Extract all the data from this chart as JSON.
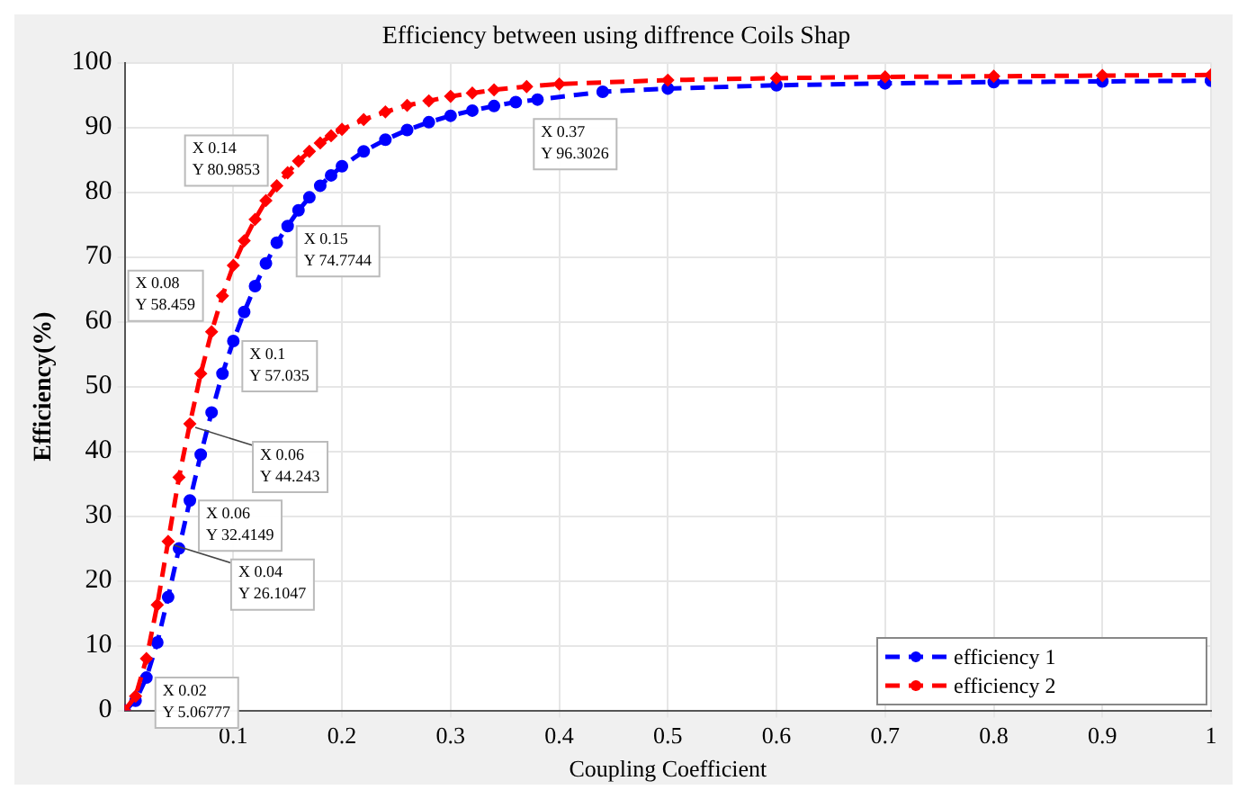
{
  "chart_data": {
    "type": "line",
    "title": "Efficiency between using diffrence Coils Shap",
    "xlabel": "Coupling Coefficient",
    "ylabel": "Efficiency(%)",
    "xlim": [
      0,
      1
    ],
    "xticks": [
      0.1,
      0.2,
      0.3,
      0.4,
      0.5,
      0.6,
      0.7,
      0.8,
      0.9,
      1
    ],
    "ylim": [
      0,
      100
    ],
    "yticks": [
      0,
      10,
      20,
      30,
      40,
      50,
      60,
      70,
      80,
      90,
      100
    ],
    "grid": true,
    "legend": "bottom right",
    "line_style": "dashed",
    "series": [
      {
        "name": "efficiency 1",
        "color": "#0000ff",
        "marker": "circle",
        "x": [
          0,
          0.01,
          0.02,
          0.03,
          0.04,
          0.05,
          0.06,
          0.07,
          0.08,
          0.09,
          0.1,
          0.11,
          0.12,
          0.13,
          0.14,
          0.15,
          0.16,
          0.17,
          0.18,
          0.19,
          0.2,
          0.22,
          0.24,
          0.26,
          0.28,
          0.3,
          0.32,
          0.34,
          0.36,
          0.38,
          0.44,
          0.5,
          0.6,
          0.7,
          0.8,
          0.9,
          1
        ],
        "values": [
          0,
          1.5,
          5.06777,
          10.5,
          17.5,
          25,
          32.4149,
          39.5,
          46,
          52,
          57.035,
          61.5,
          65.5,
          69,
          72.2,
          74.7744,
          77.2,
          79.2,
          81,
          82.6,
          84,
          86.3,
          88.1,
          89.6,
          90.8,
          91.8,
          92.6,
          93.3,
          93.9,
          94.3,
          95.5,
          96,
          96.5,
          96.8,
          97,
          97.1,
          97.2
        ]
      },
      {
        "name": "efficiency 2",
        "color": "#ff0000",
        "marker": "diamond",
        "x": [
          0,
          0.01,
          0.02,
          0.03,
          0.04,
          0.05,
          0.06,
          0.07,
          0.08,
          0.09,
          0.1,
          0.11,
          0.12,
          0.13,
          0.14,
          0.15,
          0.16,
          0.17,
          0.18,
          0.19,
          0.2,
          0.22,
          0.24,
          0.26,
          0.28,
          0.3,
          0.32,
          0.34,
          0.37,
          0.4,
          0.5,
          0.6,
          0.7,
          0.8,
          0.9,
          1
        ],
        "values": [
          0,
          2.2,
          8,
          16.3,
          26.1047,
          36,
          44.243,
          52,
          58.459,
          64,
          68.7,
          72.5,
          75.8,
          78.7,
          80.9853,
          83,
          84.8,
          86.3,
          87.6,
          88.7,
          89.7,
          91.2,
          92.4,
          93.4,
          94.1,
          94.8,
          95.3,
          95.8,
          96.3026,
          96.7,
          97.3,
          97.6,
          97.8,
          97.9,
          98,
          98.1
        ]
      }
    ],
    "annotations": [
      {
        "text": "X 0.02\nY 5.06777",
        "x": 0.02,
        "y": 5.06777
      },
      {
        "text": "X 0.06\nY 32.4149",
        "x": 0.06,
        "y": 32.4149
      },
      {
        "text": "X 0.1\nY 57.035",
        "x": 0.1,
        "y": 57.035
      },
      {
        "text": "X 0.15\nY 74.7744",
        "x": 0.15,
        "y": 74.7744
      },
      {
        "text": "X 0.04\nY 26.1047",
        "x": 0.04,
        "y": 26.1047
      },
      {
        "text": "X 0.06\nY 44.243",
        "x": 0.06,
        "y": 44.243
      },
      {
        "text": "X 0.08\nY 58.459",
        "x": 0.08,
        "y": 58.459
      },
      {
        "text": "X 0.14\nY 80.9853",
        "x": 0.14,
        "y": 80.9853
      },
      {
        "text": "X 0.37\nY 96.3026",
        "x": 0.37,
        "y": 96.3026
      }
    ]
  }
}
